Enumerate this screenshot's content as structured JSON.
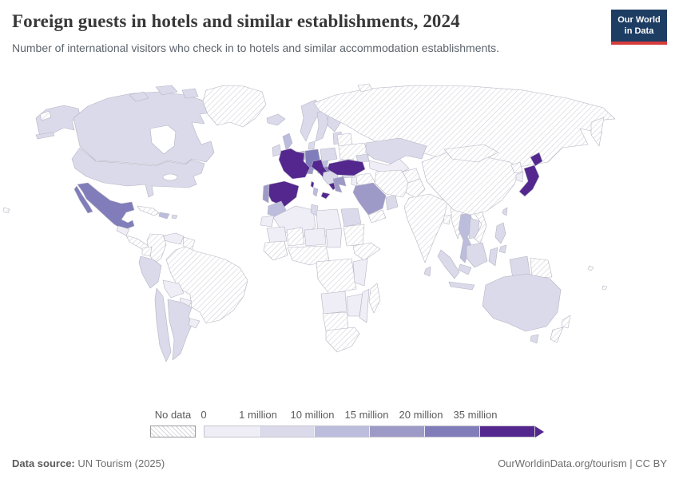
{
  "header": {
    "title": "Foreign guests in hotels and similar establishments, 2024",
    "subtitle": "Number of international visitors who check in to hotels and similar accommodation establishments.",
    "logo_line1": "Our World",
    "logo_line2": "in Data",
    "logo_bg": "#1d3d63",
    "logo_accent": "#d73c3c"
  },
  "legend": {
    "no_data_label": "No data",
    "bin_labels": [
      "0",
      "1 million",
      "10 million",
      "15 million",
      "20 million",
      "35 million"
    ],
    "bin_colors": [
      "#efedf5",
      "#dadaeb",
      "#bcbddc",
      "#9e9ac8",
      "#807dba",
      "#54278f"
    ]
  },
  "footer": {
    "source_label": "Data source:",
    "source_value": "UN Tourism (2025)",
    "attribution": "OurWorldinData.org/tourism | CC BY"
  },
  "chart_data": {
    "type": "choropleth_map",
    "title": "Foreign guests in hotels and similar establishments, 2024",
    "year": "2024",
    "metric": "Number of international visitors checking in to hotels and similar establishments",
    "legend_labels": [
      "0",
      "1 million",
      "10 million",
      "15 million",
      "20 million",
      "35 million"
    ],
    "bin_ranges": [
      "0-1 million",
      "1-10 million",
      "10-15 million",
      "15-20 million",
      "20-35 million",
      "35 million and more"
    ],
    "no_data_label": "No data",
    "region_values": {
      "alaska": 1,
      "canada": 1,
      "usa": 1,
      "greenland": "no_data",
      "mexico": 4,
      "guatemala": 0,
      "central_america": "no_data",
      "cuba": "no_data",
      "hispaniola": 2,
      "puerto_rico": 1,
      "venezuela": 0,
      "colombia": "no_data",
      "guyanas": "no_data",
      "ecuador": "no_data",
      "brazil": "no_data",
      "peru": 1,
      "bolivia": 0,
      "paraguay": 0,
      "chile": 1,
      "argentina": 1,
      "uruguay": 0,
      "iceland": 1,
      "ireland": 1,
      "uk": 2,
      "norway": 1,
      "sweden": 1,
      "finland": 1,
      "baltics": 1,
      "denmark": 1,
      "benelux": 2,
      "germany": 4,
      "poland": 1,
      "belarus": "no_data",
      "ukraine": "no_data",
      "czech": 2,
      "austria": 4,
      "switzerland": 3,
      "france": 5,
      "corsica": 5,
      "spain": 5,
      "portugal": 3,
      "italy": 5,
      "sicily": 5,
      "sardinia": 2,
      "croatia_balkans": 1,
      "hungary": 2,
      "romania": 0,
      "bulgaria": 1,
      "greece": 3,
      "russia": "no_data",
      "svalbard": "no_data",
      "chukotka_islands": "no_data",
      "kazakhstan": 1,
      "central_asia": 0,
      "caucasus": 1,
      "turkey": 5,
      "syria_iraq": "no_data",
      "iran": "no_data",
      "afghanistan": "no_data",
      "pakistan": "no_data",
      "saudi_arabia": 3,
      "uae_oman": 1,
      "yemen": "no_data",
      "israel_jordan": 0,
      "india": "no_data",
      "sri_lanka": 1,
      "bangladesh": "no_data",
      "myanmar": "no_data",
      "thailand": 2,
      "laos_cambodia": 1,
      "vietnam": "no_data",
      "china": "no_data",
      "mongolia": "no_data",
      "north_korea": "no_data",
      "south_korea": 0,
      "japan": 5,
      "taiwan": 1,
      "philippines": 1,
      "malaysia": 1,
      "sumatra": 1,
      "java": 1,
      "borneo": 1,
      "sulawesi": 1,
      "west_papua": 1,
      "png": "no_data",
      "australia": 1,
      "tasmania": 1,
      "new_zealand": "no_data",
      "pacific_islands": "no_data",
      "hawaii_islands": "no_data",
      "morocco": 2,
      "western_sahara": 0,
      "algeria": 0,
      "tunisia": 1,
      "libya": 0,
      "egypt": 1,
      "sudan": "no_data",
      "mauritania": 0,
      "mali": "no_data",
      "niger": 0,
      "chad": 0,
      "west_africa": "no_data",
      "nigeria_coast": "no_data",
      "horn_africa": "no_data",
      "central_africa": "no_data",
      "east_africa": 0,
      "angola": 0,
      "zambia_zimbabwe": 0,
      "mozambique": 0,
      "namibia_botswana": "no_data",
      "south_africa": "no_data",
      "madagascar": "no_data"
    }
  }
}
